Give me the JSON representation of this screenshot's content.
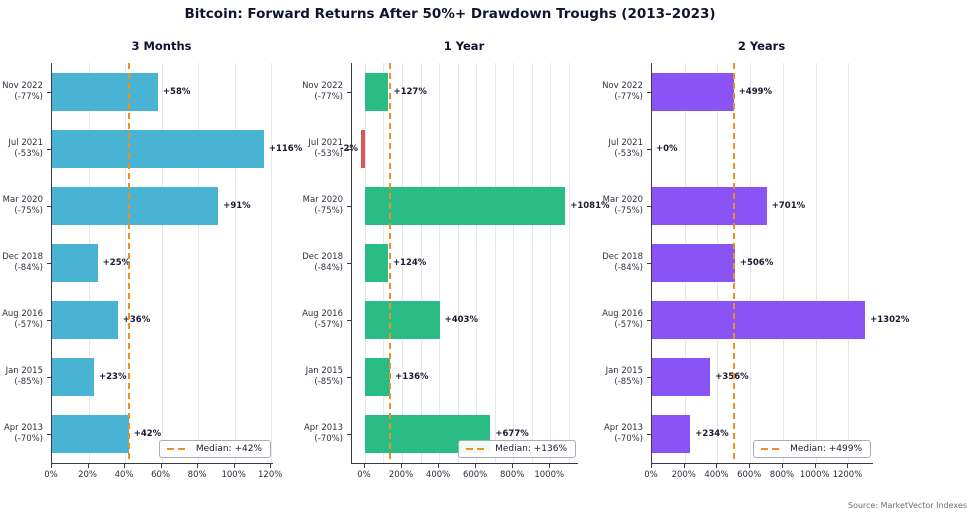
{
  "title": "Bitcoin: Forward Returns After 50%+ Drawdown Troughs (2013–2023)",
  "source": "Source: MarketVector Indexes",
  "accent_colors": {
    "teal": "#49b3d4",
    "green": "#29bd85",
    "purple": "#8953f6",
    "red": "#dd5554",
    "median_orange": "#ef8f1f"
  },
  "categories": [
    {
      "date": "Nov 2022",
      "drawdown": "(-77%)"
    },
    {
      "date": "Jul 2021",
      "drawdown": "(-53%)"
    },
    {
      "date": "Mar 2020",
      "drawdown": "(-75%)"
    },
    {
      "date": "Dec 2018",
      "drawdown": "(-84%)"
    },
    {
      "date": "Aug 2016",
      "drawdown": "(-57%)"
    },
    {
      "date": "Jan 2015",
      "drawdown": "(-85%)"
    },
    {
      "date": "Apr 2013",
      "drawdown": "(-70%)"
    }
  ],
  "chart_data": [
    {
      "type": "bar",
      "orientation": "horizontal",
      "title": "3 Months",
      "bar_color": "#49b3d4",
      "negative_color": "#dd5554",
      "categories": [
        "Nov 2022 (-77%)",
        "Jul 2021 (-53%)",
        "Mar 2020 (-75%)",
        "Dec 2018 (-84%)",
        "Aug 2016 (-57%)",
        "Jan 2015 (-85%)",
        "Apr 2013 (-70%)"
      ],
      "values": [
        58,
        116,
        91,
        25,
        36,
        23,
        42
      ],
      "value_labels": [
        "+58%",
        "+116%",
        "+91%",
        "+25%",
        "+36%",
        "+23%",
        "+42%"
      ],
      "median": 42,
      "legend_label": "Median: +42%",
      "legend_position": "lower right",
      "xlim": [
        0,
        121
      ],
      "grid_step": 20,
      "grid_on": true,
      "ticks": [
        {
          "v": 0,
          "label": "0%"
        },
        {
          "v": 20,
          "label": "20%"
        },
        {
          "v": 40,
          "label": "40%"
        },
        {
          "v": 60,
          "label": "60%"
        },
        {
          "v": 80,
          "label": "80%"
        },
        {
          "v": 100,
          "label": "100%"
        },
        {
          "v": 120,
          "label": "120%"
        }
      ]
    },
    {
      "type": "bar",
      "orientation": "horizontal",
      "title": "1 Year",
      "bar_color": "#29bd85",
      "negative_color": "#dd5554",
      "categories": [
        "Nov 2022 (-77%)",
        "Jul 2021 (-53%)",
        "Mar 2020 (-75%)",
        "Dec 2018 (-84%)",
        "Aug 2016 (-57%)",
        "Jan 2015 (-85%)",
        "Apr 2013 (-70%)"
      ],
      "values": [
        127,
        -2,
        1081,
        124,
        403,
        136,
        677
      ],
      "value_labels": [
        "+127%",
        "-2%",
        "+1081%",
        "+124%",
        "+403%",
        "+136%",
        "+677%"
      ],
      "median": 136,
      "legend_label": "Median: +136%",
      "legend_position": "lower right",
      "xlim": [
        -70,
        1150
      ],
      "grid_step": 100,
      "grid_on": true,
      "ticks": [
        {
          "v": 0,
          "label": "0%"
        },
        {
          "v": 200,
          "label": "200%"
        },
        {
          "v": 400,
          "label": "400%"
        },
        {
          "v": 600,
          "label": "600%"
        },
        {
          "v": 800,
          "label": "800%"
        },
        {
          "v": 1000,
          "label": "1000%"
        }
      ]
    },
    {
      "type": "bar",
      "orientation": "horizontal",
      "title": "2 Years",
      "bar_color": "#8953f6",
      "negative_color": "#dd5554",
      "categories": [
        "Nov 2022 (-77%)",
        "Jul 2021 (-53%)",
        "Mar 2020 (-75%)",
        "Dec 2018 (-84%)",
        "Aug 2016 (-57%)",
        "Jan 2015 (-85%)",
        "Apr 2013 (-70%)"
      ],
      "values": [
        499,
        0,
        701,
        506,
        1302,
        356,
        234
      ],
      "value_labels": [
        "+499%",
        "+0%",
        "+701%",
        "+506%",
        "+1302%",
        "+356%",
        "+234%"
      ],
      "median": 499,
      "legend_label": "Median: +499%",
      "legend_position": "lower right",
      "xlim": [
        0,
        1350
      ],
      "grid_step": 200,
      "grid_on": true,
      "ticks": [
        {
          "v": 0,
          "label": "0%"
        },
        {
          "v": 200,
          "label": "200%"
        },
        {
          "v": 400,
          "label": "400%"
        },
        {
          "v": 600,
          "label": "600%"
        },
        {
          "v": 800,
          "label": "800%"
        },
        {
          "v": 1000,
          "label": "1000%"
        },
        {
          "v": 1200,
          "label": "1200%"
        }
      ]
    }
  ]
}
